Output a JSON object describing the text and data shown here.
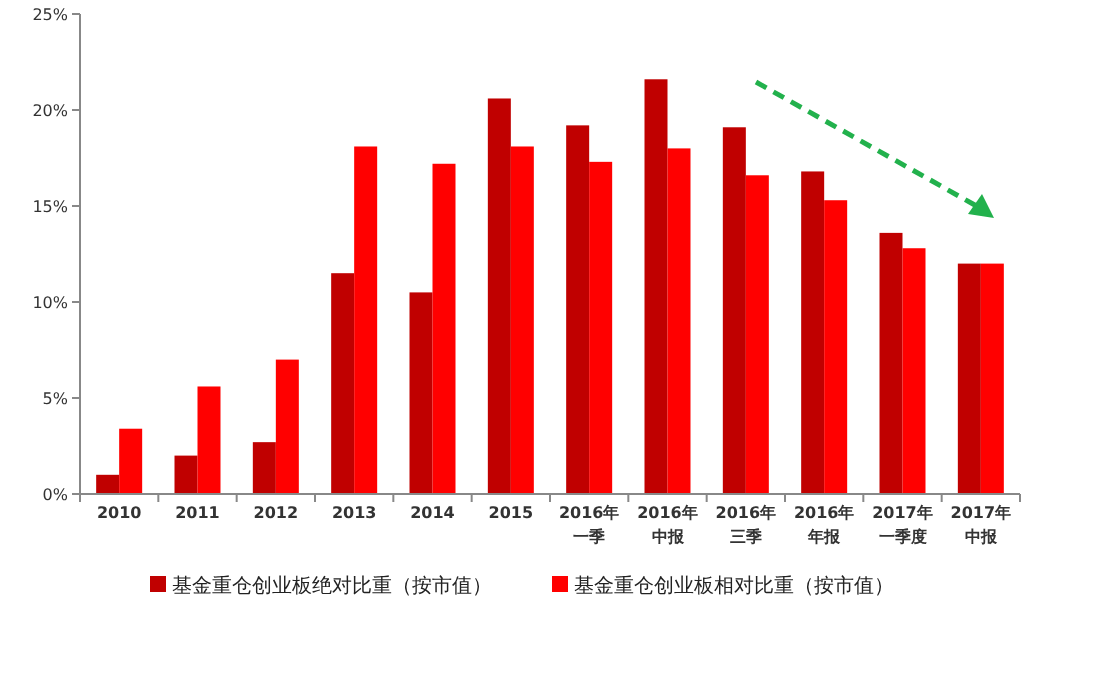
{
  "chart_data": {
    "type": "bar",
    "categories": [
      "2010",
      "2011",
      "2012",
      "2013",
      "2014",
      "2015",
      "2016年一季",
      "2016年中报",
      "2016年三季",
      "2016年年报",
      "2017年一季度",
      "2017年中报"
    ],
    "series": [
      {
        "name": "基金重仓创业板绝对比重（按市值）",
        "color": "#c00000",
        "values": [
          1.0,
          2.0,
          2.7,
          11.5,
          10.5,
          20.6,
          19.2,
          21.6,
          19.1,
          16.8,
          13.6,
          12.0
        ]
      },
      {
        "name": "基金重仓创业板相对比重（按市值）",
        "color": "#ff0000",
        "values": [
          3.4,
          5.6,
          7.0,
          18.1,
          17.2,
          18.1,
          17.3,
          18.0,
          16.6,
          15.3,
          12.8,
          12.0
        ]
      }
    ],
    "ylim": [
      0,
      25
    ],
    "yticks": [
      {
        "value": 0,
        "label": "0%"
      },
      {
        "value": 5,
        "label": "5%"
      },
      {
        "value": 10,
        "label": "10%"
      },
      {
        "value": 15,
        "label": "15%"
      },
      {
        "value": 20,
        "label": "20%"
      },
      {
        "value": 25,
        "label": "25%"
      }
    ],
    "grid": false,
    "legend": "bottom"
  }
}
